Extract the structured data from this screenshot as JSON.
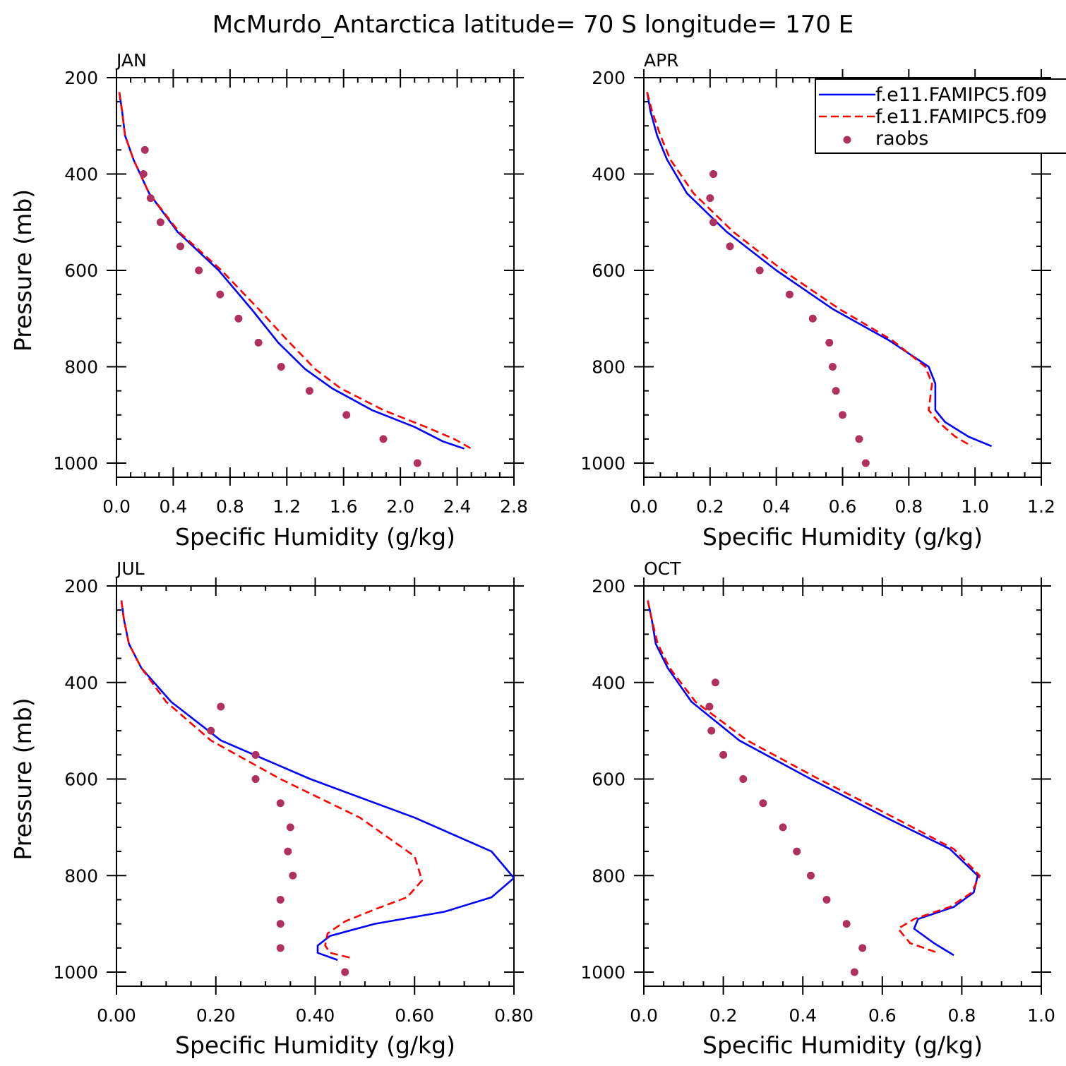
{
  "title": "McMurdo_Antarctica  latitude= 70 S longitude= 170 E",
  "legend": {
    "entries": [
      {
        "label": "f.e11.FAMIPC5.f09",
        "style": "solid",
        "color": "#0000ff"
      },
      {
        "label": "f.e11.FAMIPC5.f09",
        "style": "dashed",
        "color": "#ff0000"
      },
      {
        "label": "raobs",
        "style": "marker",
        "color": "#b03060"
      }
    ]
  },
  "colors": {
    "model_solid": "#0000ff",
    "model_dashed": "#ff0000",
    "raobs": "#b03060"
  },
  "chart_data": [
    {
      "panel": "JAN",
      "type": "line",
      "xlabel": "Specific Humidity (g/kg)",
      "ylabel": "Pressure (mb)",
      "xlim": [
        0,
        2.8
      ],
      "ylim": [
        1000,
        200
      ],
      "xticks": [
        0.0,
        0.4,
        0.8,
        1.2,
        1.6,
        2.0,
        2.4,
        2.8
      ],
      "xtick_labels": [
        "0.0",
        "0.4",
        "0.8",
        "1.2",
        "1.6",
        "2.0",
        "2.4",
        "2.8"
      ],
      "yticks": [
        200,
        400,
        600,
        800,
        1000
      ],
      "ytick_labels": [
        "200",
        "400",
        "600",
        "800",
        "1000"
      ],
      "series": [
        {
          "name": "f.e11.FAMIPC5.f09",
          "style": "solid",
          "points": [
            [
              0.02,
              230
            ],
            [
              0.04,
              270
            ],
            [
              0.06,
              320
            ],
            [
              0.12,
              370
            ],
            [
              0.23,
              440
            ],
            [
              0.43,
              520
            ],
            [
              0.72,
              600
            ],
            [
              0.95,
              680
            ],
            [
              1.14,
              750
            ],
            [
              1.33,
              805
            ],
            [
              1.52,
              845
            ],
            [
              1.8,
              890
            ],
            [
              2.1,
              925
            ],
            [
              2.3,
              955
            ],
            [
              2.45,
              970
            ]
          ]
        },
        {
          "name": "f.e11.FAMIPC5.f09",
          "style": "dashed",
          "points": [
            [
              0.02,
              230
            ],
            [
              0.04,
              270
            ],
            [
              0.06,
              320
            ],
            [
              0.12,
              370
            ],
            [
              0.23,
              440
            ],
            [
              0.44,
              520
            ],
            [
              0.74,
              600
            ],
            [
              1.0,
              680
            ],
            [
              1.22,
              750
            ],
            [
              1.4,
              805
            ],
            [
              1.58,
              845
            ],
            [
              1.88,
              890
            ],
            [
              2.18,
              925
            ],
            [
              2.38,
              950
            ],
            [
              2.5,
              970
            ]
          ]
        },
        {
          "name": "raobs",
          "style": "marker",
          "points": [
            [
              0.2,
              350
            ],
            [
              0.19,
              400
            ],
            [
              0.24,
              450
            ],
            [
              0.31,
              500
            ],
            [
              0.45,
              550
            ],
            [
              0.58,
              600
            ],
            [
              0.73,
              650
            ],
            [
              0.86,
              700
            ],
            [
              1.0,
              750
            ],
            [
              1.16,
              800
            ],
            [
              1.36,
              850
            ],
            [
              1.62,
              900
            ],
            [
              1.88,
              950
            ],
            [
              2.12,
              1000
            ]
          ]
        }
      ]
    },
    {
      "panel": "APR",
      "type": "line",
      "xlabel": "Specific Humidity (g/kg)",
      "ylabel": "",
      "xlim": [
        0,
        1.2
      ],
      "ylim": [
        1000,
        200
      ],
      "xticks": [
        0.0,
        0.2,
        0.4,
        0.6,
        0.8,
        1.0,
        1.2
      ],
      "xtick_labels": [
        "0.0",
        "0.2",
        "0.4",
        "0.6",
        "0.8",
        "1.0",
        "1.2"
      ],
      "yticks": [
        200,
        400,
        600,
        800,
        1000
      ],
      "ytick_labels": [
        "200",
        "400",
        "600",
        "800",
        "1000"
      ],
      "series": [
        {
          "name": "f.e11.FAMIPC5.f09",
          "style": "solid",
          "points": [
            [
              0.01,
              230
            ],
            [
              0.02,
              270
            ],
            [
              0.04,
              320
            ],
            [
              0.07,
              370
            ],
            [
              0.13,
              440
            ],
            [
              0.25,
              520
            ],
            [
              0.4,
              600
            ],
            [
              0.57,
              680
            ],
            [
              0.74,
              745
            ],
            [
              0.86,
              800
            ],
            [
              0.88,
              835
            ],
            [
              0.88,
              890
            ],
            [
              0.91,
              915
            ],
            [
              0.98,
              945
            ],
            [
              1.05,
              965
            ]
          ]
        },
        {
          "name": "f.e11.FAMIPC5.f09",
          "style": "dashed",
          "points": [
            [
              0.01,
              230
            ],
            [
              0.025,
              270
            ],
            [
              0.05,
              320
            ],
            [
              0.08,
              370
            ],
            [
              0.15,
              440
            ],
            [
              0.27,
              520
            ],
            [
              0.42,
              600
            ],
            [
              0.59,
              680
            ],
            [
              0.75,
              745
            ],
            [
              0.85,
              800
            ],
            [
              0.87,
              835
            ],
            [
              0.86,
              890
            ],
            [
              0.89,
              915
            ],
            [
              0.94,
              945
            ],
            [
              0.99,
              965
            ]
          ]
        },
        {
          "name": "raobs",
          "style": "marker",
          "points": [
            [
              0.21,
              400
            ],
            [
              0.2,
              450
            ],
            [
              0.21,
              500
            ],
            [
              0.26,
              550
            ],
            [
              0.35,
              600
            ],
            [
              0.44,
              650
            ],
            [
              0.51,
              700
            ],
            [
              0.56,
              750
            ],
            [
              0.57,
              800
            ],
            [
              0.58,
              850
            ],
            [
              0.6,
              900
            ],
            [
              0.65,
              950
            ],
            [
              0.67,
              1000
            ]
          ]
        }
      ]
    },
    {
      "panel": "JUL",
      "type": "line",
      "xlabel": "Specific Humidity (g/kg)",
      "ylabel": "Pressure (mb)",
      "xlim": [
        0,
        0.8
      ],
      "ylim": [
        1000,
        200
      ],
      "xticks": [
        0.0,
        0.2,
        0.4,
        0.6,
        0.8
      ],
      "xtick_labels": [
        "0.00",
        "0.20",
        "0.40",
        "0.60",
        "0.80"
      ],
      "yticks": [
        200,
        400,
        600,
        800,
        1000
      ],
      "ytick_labels": [
        "200",
        "400",
        "600",
        "800",
        "1000"
      ],
      "series": [
        {
          "name": "f.e11.FAMIPC5.f09",
          "style": "solid",
          "points": [
            [
              0.01,
              230
            ],
            [
              0.015,
              270
            ],
            [
              0.025,
              320
            ],
            [
              0.05,
              370
            ],
            [
              0.11,
              440
            ],
            [
              0.21,
              520
            ],
            [
              0.39,
              600
            ],
            [
              0.6,
              680
            ],
            [
              0.755,
              750
            ],
            [
              0.8,
              805
            ],
            [
              0.755,
              845
            ],
            [
              0.66,
              875
            ],
            [
              0.52,
              900
            ],
            [
              0.43,
              925
            ],
            [
              0.405,
              945
            ],
            [
              0.405,
              960
            ],
            [
              0.445,
              975
            ]
          ]
        },
        {
          "name": "f.e11.FAMIPC5.f09",
          "style": "dashed",
          "points": [
            [
              0.01,
              230
            ],
            [
              0.015,
              270
            ],
            [
              0.025,
              320
            ],
            [
              0.05,
              370
            ],
            [
              0.1,
              440
            ],
            [
              0.19,
              520
            ],
            [
              0.33,
              600
            ],
            [
              0.49,
              680
            ],
            [
              0.6,
              760
            ],
            [
              0.615,
              810
            ],
            [
              0.585,
              845
            ],
            [
              0.52,
              870
            ],
            [
              0.46,
              895
            ],
            [
              0.425,
              920
            ],
            [
              0.42,
              945
            ],
            [
              0.43,
              960
            ],
            [
              0.47,
              970
            ]
          ]
        },
        {
          "name": "raobs",
          "style": "marker",
          "points": [
            [
              0.21,
              450
            ],
            [
              0.19,
              500
            ],
            [
              0.28,
              550
            ],
            [
              0.28,
              600
            ],
            [
              0.33,
              650
            ],
            [
              0.35,
              700
            ],
            [
              0.345,
              750
            ],
            [
              0.355,
              800
            ],
            [
              0.33,
              850
            ],
            [
              0.33,
              900
            ],
            [
              0.33,
              950
            ],
            [
              0.46,
              1000
            ]
          ]
        }
      ]
    },
    {
      "panel": "OCT",
      "type": "line",
      "xlabel": "Specific Humidity (g/kg)",
      "ylabel": "",
      "xlim": [
        0,
        1.0
      ],
      "ylim": [
        1000,
        200
      ],
      "xticks": [
        0.0,
        0.2,
        0.4,
        0.6,
        0.8,
        1.0
      ],
      "xtick_labels": [
        "0.0",
        "0.2",
        "0.4",
        "0.6",
        "0.8",
        "1.0"
      ],
      "yticks": [
        200,
        400,
        600,
        800,
        1000
      ],
      "ytick_labels": [
        "200",
        "400",
        "600",
        "800",
        "1000"
      ],
      "series": [
        {
          "name": "f.e11.FAMIPC5.f09",
          "style": "solid",
          "points": [
            [
              0.01,
              230
            ],
            [
              0.02,
              270
            ],
            [
              0.03,
              320
            ],
            [
              0.06,
              370
            ],
            [
              0.12,
              440
            ],
            [
              0.24,
              520
            ],
            [
              0.42,
              600
            ],
            [
              0.61,
              680
            ],
            [
              0.77,
              745
            ],
            [
              0.84,
              800
            ],
            [
              0.83,
              835
            ],
            [
              0.78,
              865
            ],
            [
              0.69,
              890
            ],
            [
              0.68,
              910
            ],
            [
              0.73,
              940
            ],
            [
              0.78,
              965
            ]
          ]
        },
        {
          "name": "f.e11.FAMIPC5.f09",
          "style": "dashed",
          "points": [
            [
              0.01,
              230
            ],
            [
              0.02,
              270
            ],
            [
              0.035,
              320
            ],
            [
              0.065,
              370
            ],
            [
              0.13,
              440
            ],
            [
              0.26,
              520
            ],
            [
              0.44,
              600
            ],
            [
              0.63,
              680
            ],
            [
              0.78,
              745
            ],
            [
              0.845,
              800
            ],
            [
              0.825,
              835
            ],
            [
              0.77,
              865
            ],
            [
              0.68,
              890
            ],
            [
              0.64,
              910
            ],
            [
              0.67,
              940
            ],
            [
              0.74,
              960
            ]
          ]
        },
        {
          "name": "raobs",
          "style": "marker",
          "points": [
            [
              0.18,
              400
            ],
            [
              0.165,
              450
            ],
            [
              0.17,
              500
            ],
            [
              0.2,
              550
            ],
            [
              0.25,
              600
            ],
            [
              0.3,
              650
            ],
            [
              0.35,
              700
            ],
            [
              0.385,
              750
            ],
            [
              0.42,
              800
            ],
            [
              0.46,
              850
            ],
            [
              0.51,
              900
            ],
            [
              0.55,
              950
            ],
            [
              0.53,
              1000
            ]
          ]
        }
      ]
    }
  ]
}
